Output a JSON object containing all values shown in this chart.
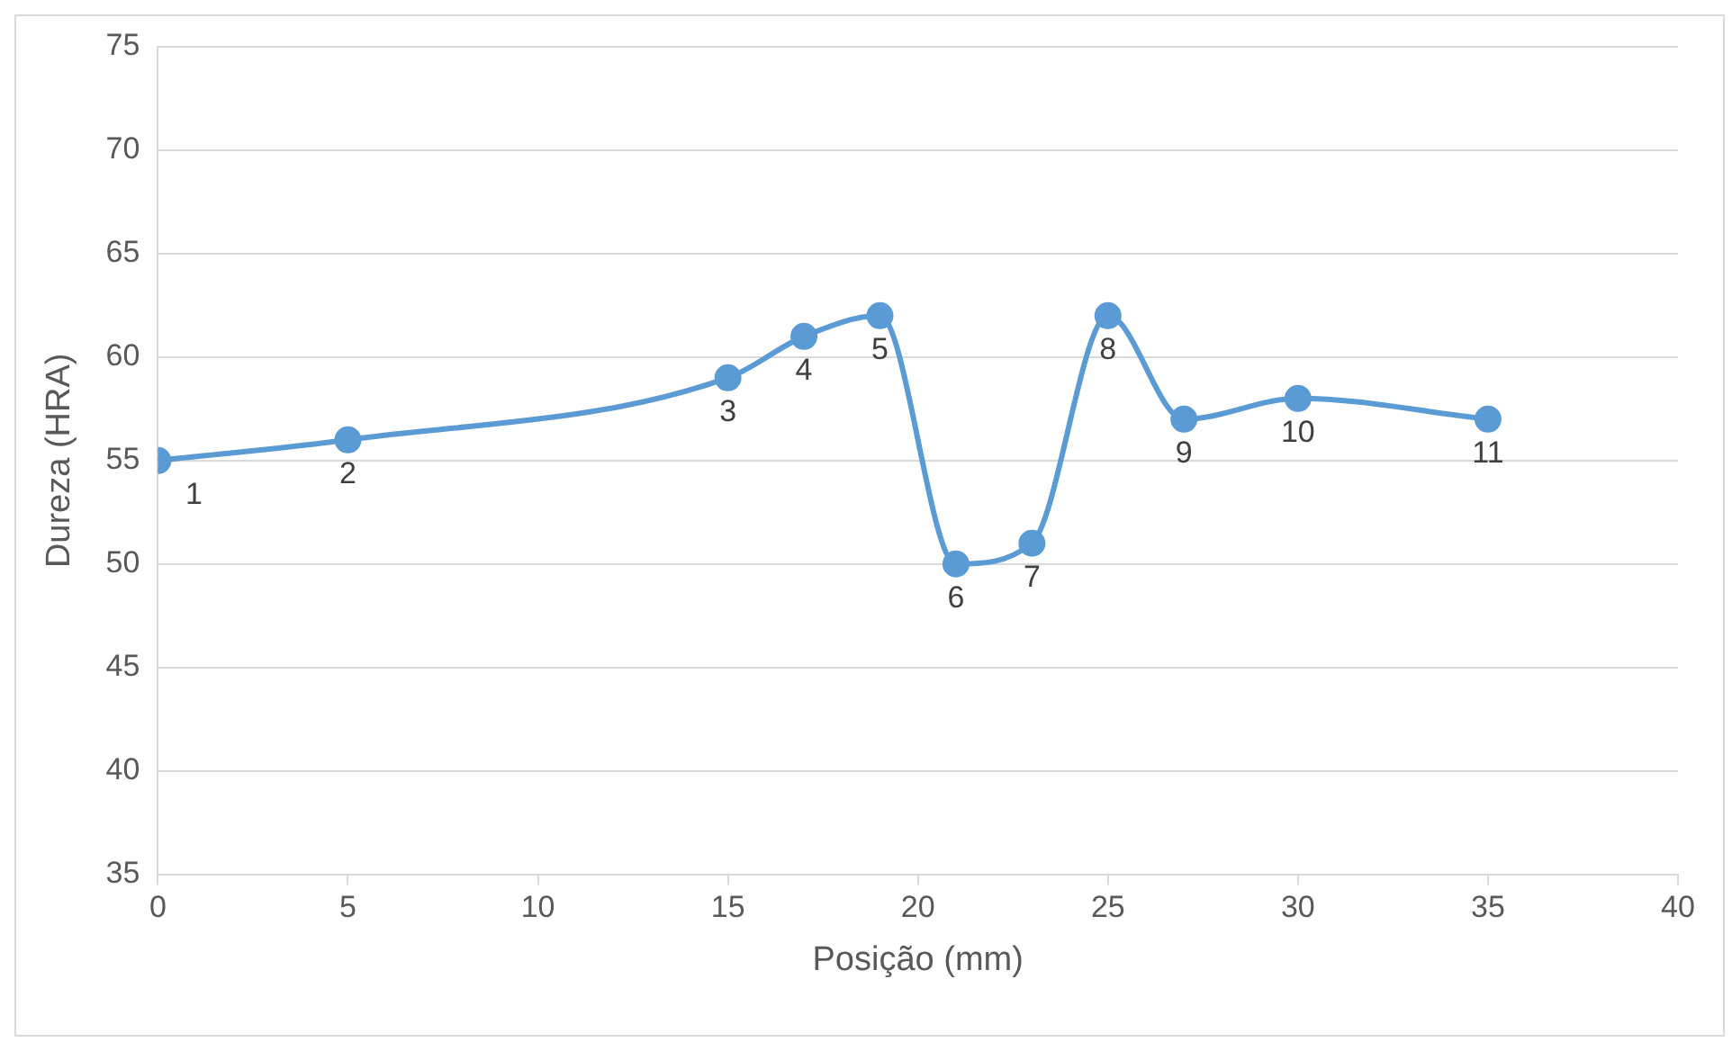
{
  "chart_data": {
    "type": "line",
    "xlabel": "Posição (mm)",
    "ylabel": "Dureza (HRA)",
    "x": [
      0,
      5,
      15,
      17,
      19,
      21,
      23,
      25,
      27,
      30,
      35
    ],
    "series": [
      {
        "color": "#5b9bd5",
        "values": [
          55,
          56,
          59,
          61,
          62,
          50,
          51,
          62,
          57,
          58,
          57
        ]
      }
    ],
    "xlim": [
      0,
      40
    ],
    "xticks": [
      0,
      5,
      10,
      15,
      20,
      25,
      30,
      35,
      40
    ],
    "ylim": [
      35,
      75
    ],
    "yticks": [
      35,
      40,
      45,
      50,
      55,
      60,
      65,
      70,
      75
    ],
    "grid": "y",
    "legend": false,
    "marker": "circle",
    "line_style": "solid",
    "annotations": [
      {
        "text": "1",
        "x": 0,
        "y": 55
      },
      {
        "text": "2",
        "x": 5,
        "y": 56
      },
      {
        "text": "3",
        "x": 15,
        "y": 59
      },
      {
        "text": "4",
        "x": 17,
        "y": 61
      },
      {
        "text": "5",
        "x": 19,
        "y": 62
      },
      {
        "text": "6",
        "x": 21,
        "y": 50
      },
      {
        "text": "7",
        "x": 23,
        "y": 51
      },
      {
        "text": "8",
        "x": 25,
        "y": 62
      },
      {
        "text": "9",
        "x": 27,
        "y": 57
      },
      {
        "text": "10",
        "x": 30,
        "y": 58
      },
      {
        "text": "11",
        "x": 35,
        "y": 57
      }
    ]
  }
}
